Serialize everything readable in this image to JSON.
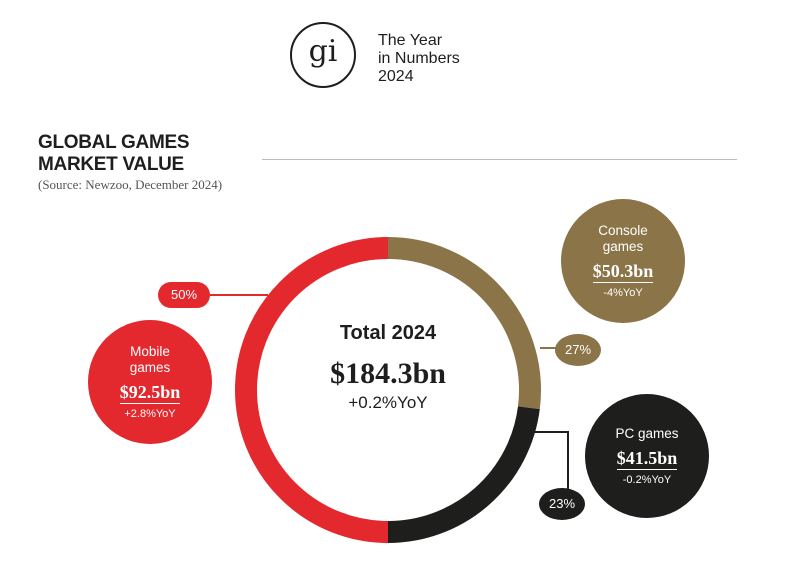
{
  "header": {
    "logo_text": "gi",
    "tagline": [
      "The Year",
      "in Numbers",
      "2024"
    ]
  },
  "chart_data": {
    "type": "pie",
    "title": [
      "GLOBAL GAMES",
      "MARKET VALUE"
    ],
    "source": "(Source: Newzoo, December 2024)",
    "total": {
      "label": "Total 2024",
      "value": "$184.3bn",
      "yoy": "+0.2%YoY"
    },
    "slices": [
      {
        "name": "Mobile games",
        "name_lines": [
          "Mobile",
          "games"
        ],
        "value_bn": 92.5,
        "value_label": "$92.5bn",
        "yoy": "+2.8%YoY",
        "share": 50,
        "share_label": "50%",
        "color": "#e3282e"
      },
      {
        "name": "Console games",
        "name_lines": [
          "Console",
          "games"
        ],
        "value_bn": 50.3,
        "value_label": "$50.3bn",
        "yoy": "-4%YoY",
        "share": 27,
        "share_label": "27%",
        "color": "#8a7448"
      },
      {
        "name": "PC games",
        "name_lines": [
          "PC games"
        ],
        "value_bn": 41.5,
        "value_label": "$41.5bn",
        "yoy": "-0.2%YoY",
        "share": 23,
        "share_label": "23%",
        "color": "#1e1f1d"
      }
    ]
  }
}
